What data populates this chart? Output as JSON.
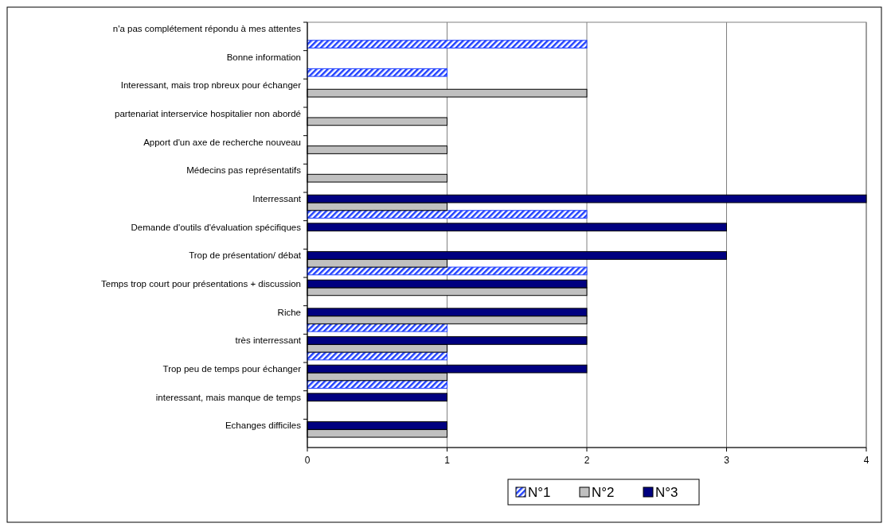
{
  "chart_data": {
    "type": "bar",
    "orientation": "horizontal",
    "categories": [
      "n'a pas complétement répondu à mes attentes",
      "Bonne information",
      "Interessant, mais trop nbreux pour échanger",
      "partenariat interservice hospitalier non abordé",
      "Apport d'un axe de recherche nouveau",
      "Médecins pas représentatifs",
      "Interressant",
      "Demande d'outils d'évaluation spécifiques",
      "Trop de présentation/ débat",
      "Temps trop court pour présentations + discussion",
      "Riche",
      "très interressant",
      "Trop peu de temps pour échanger",
      "interessant, mais manque de temps",
      "Echanges difficiles"
    ],
    "series": [
      {
        "name": "N°1",
        "color": "#2040ff",
        "values": [
          2,
          1,
          null,
          null,
          null,
          null,
          2,
          null,
          2,
          null,
          1,
          1,
          1,
          null,
          null
        ]
      },
      {
        "name": "N°2",
        "color": "#c0c0c0",
        "values": [
          null,
          null,
          2,
          1,
          1,
          1,
          1,
          null,
          1,
          2,
          2,
          1,
          1,
          null,
          1
        ]
      },
      {
        "name": "N°3",
        "color": "#000080",
        "values": [
          null,
          null,
          null,
          null,
          null,
          null,
          4,
          3,
          3,
          2,
          2,
          2,
          2,
          1,
          1
        ]
      }
    ],
    "xlim": [
      0,
      4
    ],
    "xticks": [
      0,
      1,
      2,
      3,
      4
    ],
    "grid": "x",
    "legend": "bottom"
  }
}
